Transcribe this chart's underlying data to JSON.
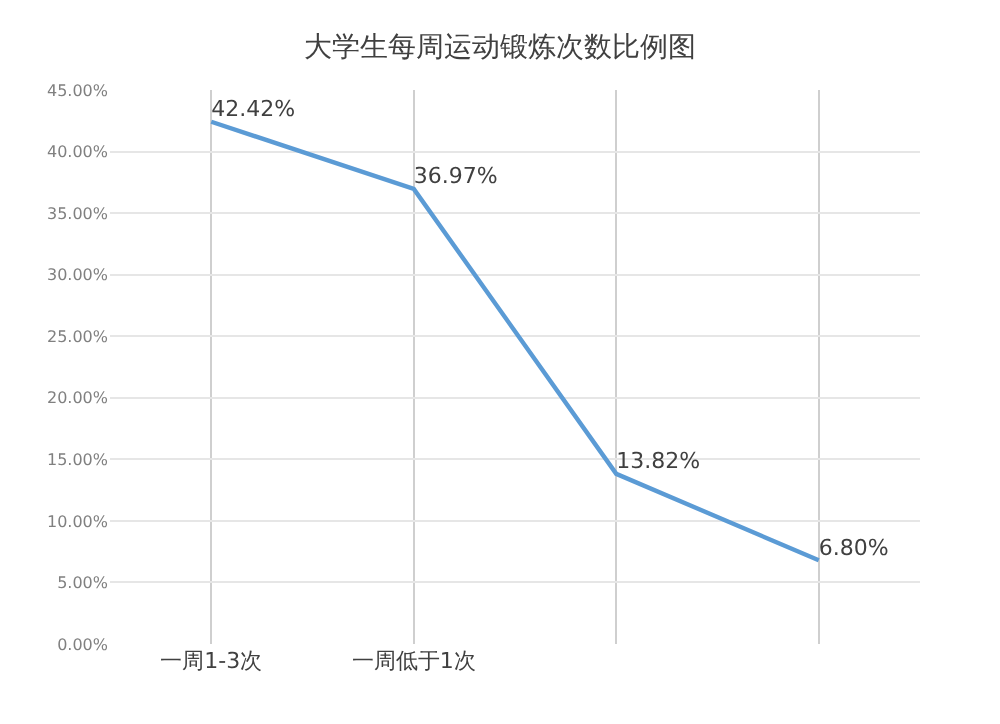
{
  "chart_data": {
    "type": "line",
    "title": "大学生每周运动锻炼次数比例图",
    "categories": [
      "一周1-3次",
      "一周低于1次",
      null,
      null
    ],
    "series": [
      {
        "color": "#5b9bd5",
        "values": [
          42.42,
          36.97,
          13.82,
          6.8
        ],
        "value_labels": [
          "42.42%",
          "36.97%",
          "13.82%",
          "6.80%"
        ]
      }
    ],
    "ylim": [
      0,
      45
    ],
    "yticks": [
      {
        "value": 0,
        "label": "0.00%"
      },
      {
        "value": 5,
        "label": "5.00%"
      },
      {
        "value": 10,
        "label": "10.00%"
      },
      {
        "value": 15,
        "label": "15.00%"
      },
      {
        "value": 20,
        "label": "20.00%"
      },
      {
        "value": 25,
        "label": "25.00%"
      },
      {
        "value": 30,
        "label": "30.00%"
      },
      {
        "value": 35,
        "label": "35.00%"
      },
      {
        "value": 40,
        "label": "40.00%"
      },
      {
        "value": 45,
        "label": "45.00%"
      }
    ],
    "grid": true,
    "marker": "none",
    "line_style": "solid"
  }
}
